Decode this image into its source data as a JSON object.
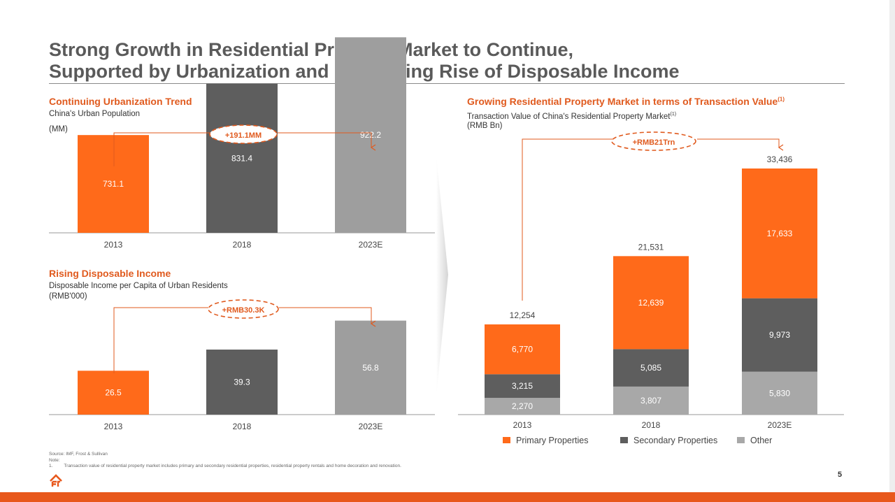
{
  "header": {
    "title_line1": "Strong Growth in Residential Property Market to Continue,",
    "title_line2": "Supported by Urbanization and Continuing Rise of Disposable Income"
  },
  "urbanization": {
    "title": "Continuing Urbanization Trend",
    "subtitle": "China's Urban Population",
    "unit": "(MM)",
    "growth_label": "+191.1MM"
  },
  "income": {
    "title": "Rising Disposable Income",
    "subtitle": "Disposable Income per Capita of Urban Residents",
    "unit": "(RMB'000)",
    "growth_label": "+RMB30.3K"
  },
  "transaction": {
    "title": "Growing Residential Property Market in terms of Transaction Value",
    "title_sup": "(1)",
    "subtitle": "Transaction Value of China's Residential Property Market",
    "subtitle_sup": "(1)",
    "unit": "(RMB Bn)",
    "growth_label": "+RMB21Trn"
  },
  "chart_data": [
    {
      "type": "bar",
      "title": "Continuing Urbanization Trend",
      "categories": [
        "2013",
        "2018",
        "2023E"
      ],
      "values": [
        731.1,
        831.4,
        922.2
      ],
      "value_labels": [
        "731.1",
        "831.4",
        "922.2"
      ],
      "colors": [
        "#ff6a1a",
        "#5e5e5e",
        "#9e9e9e"
      ],
      "ylim": [
        540,
        950
      ]
    },
    {
      "type": "bar",
      "title": "Rising Disposable Income",
      "categories": [
        "2013",
        "2018",
        "2023E"
      ],
      "values": [
        26.5,
        39.3,
        56.8
      ],
      "value_labels": [
        "26.5",
        "39.3",
        "56.8"
      ],
      "colors": [
        "#ff6a1a",
        "#5e5e5e",
        "#9e9e9e"
      ],
      "ylim": [
        0,
        60
      ]
    },
    {
      "type": "bar",
      "stacked": true,
      "title": "Growing Residential Property Market in terms of Transaction Value",
      "categories": [
        "2013",
        "2018",
        "2023E"
      ],
      "series": [
        {
          "name": "Other",
          "values": [
            2270,
            3807,
            5830
          ],
          "labels": [
            "2,270",
            "3,807",
            "5,830"
          ],
          "color": "#a8a8a8"
        },
        {
          "name": "Secondary Properties",
          "values": [
            3215,
            5085,
            9973
          ],
          "labels": [
            "3,215",
            "5,085",
            "9,973"
          ],
          "color": "#5e5e5e"
        },
        {
          "name": "Primary Properties",
          "values": [
            6770,
            12639,
            17633
          ],
          "labels": [
            "6,770",
            "12,639",
            "17,633"
          ],
          "color": "#ff6a1a"
        }
      ],
      "totals": [
        12254,
        21531,
        33436
      ],
      "total_labels": [
        "12,254",
        "21,531",
        "33,436"
      ],
      "legend": [
        {
          "name": "Primary Properties",
          "color": "#ff6a1a"
        },
        {
          "name": "Secondary Properties",
          "color": "#5e5e5e"
        },
        {
          "name": "Other",
          "color": "#a8a8a8"
        }
      ],
      "legend_position": "bottom",
      "ylim": [
        0,
        33436
      ]
    }
  ],
  "footer": {
    "source": "Source: IMF, Frost & Sullivan",
    "note_label": "Note:",
    "note_num": "1.",
    "note_text": "Transaction value of residential property market includes primary and secondary residential properties, residential property rentals and home decoration and renovation.",
    "page_number": "5"
  }
}
